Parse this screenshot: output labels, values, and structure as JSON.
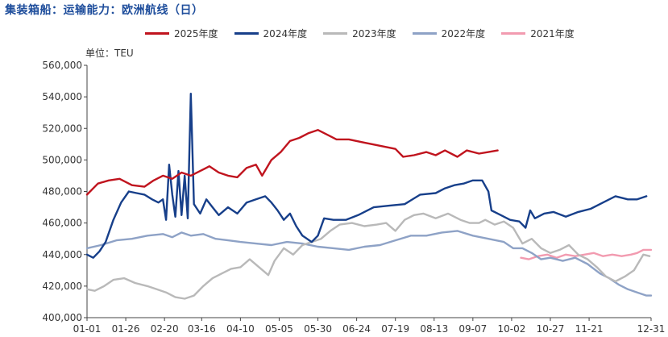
{
  "title": "集装箱船：运输能力：欧洲航线（日）",
  "unit_label": "单位：TEU",
  "chart_data": {
    "type": "line",
    "title": "集装箱船：运输能力：欧洲航线（日）",
    "ylabel": "单位：TEU",
    "ylim": [
      400000,
      560000
    ],
    "yticks": [
      "400,000",
      "420,000",
      "440,000",
      "460,000",
      "480,000",
      "500,000",
      "520,000",
      "540,000",
      "560,000"
    ],
    "ytick_values": [
      400000,
      420000,
      440000,
      460000,
      480000,
      500000,
      520000,
      540000,
      560000
    ],
    "xtick_labels": [
      "01-01",
      "01-26",
      "02-20",
      "03-16",
      "04-10",
      "05-05",
      "05-30",
      "06-24",
      "07-19",
      "08-13",
      "09-07",
      "10-02",
      "10-27",
      "11-21",
      "12-31"
    ],
    "xtick_days": [
      1,
      26,
      51,
      75,
      100,
      125,
      150,
      175,
      200,
      225,
      250,
      275,
      300,
      325,
      365
    ],
    "legend_position": "top",
    "grid": false,
    "series": [
      {
        "name": "2025年度",
        "color": "#c0141e",
        "points": [
          [
            1,
            478000
          ],
          [
            8,
            485000
          ],
          [
            15,
            487000
          ],
          [
            22,
            488000
          ],
          [
            30,
            484000
          ],
          [
            38,
            483000
          ],
          [
            44,
            487000
          ],
          [
            50,
            490000
          ],
          [
            56,
            488000
          ],
          [
            62,
            492000
          ],
          [
            68,
            490000
          ],
          [
            74,
            493000
          ],
          [
            80,
            496000
          ],
          [
            86,
            492000
          ],
          [
            92,
            490000
          ],
          [
            98,
            489000
          ],
          [
            104,
            495000
          ],
          [
            110,
            497000
          ],
          [
            114,
            490000
          ],
          [
            120,
            500000
          ],
          [
            126,
            505000
          ],
          [
            132,
            512000
          ],
          [
            138,
            514000
          ],
          [
            144,
            517000
          ],
          [
            150,
            519000
          ],
          [
            156,
            516000
          ],
          [
            162,
            513000
          ],
          [
            170,
            513000
          ],
          [
            180,
            511000
          ],
          [
            190,
            509000
          ],
          [
            200,
            507000
          ],
          [
            205,
            502000
          ],
          [
            212,
            503000
          ],
          [
            220,
            505000
          ],
          [
            226,
            503000
          ],
          [
            232,
            506000
          ],
          [
            240,
            502000
          ],
          [
            246,
            506000
          ],
          [
            254,
            504000
          ],
          [
            260,
            505000
          ],
          [
            266,
            506000
          ]
        ]
      },
      {
        "name": "2024年度",
        "color": "#173f8a",
        "points": [
          [
            1,
            440000
          ],
          [
            5,
            438000
          ],
          [
            9,
            442000
          ],
          [
            13,
            448000
          ],
          [
            18,
            462000
          ],
          [
            23,
            473000
          ],
          [
            28,
            480000
          ],
          [
            33,
            479000
          ],
          [
            38,
            478000
          ],
          [
            43,
            475000
          ],
          [
            47,
            473000
          ],
          [
            50,
            475000
          ],
          [
            52,
            462000
          ],
          [
            54,
            497000
          ],
          [
            56,
            478000
          ],
          [
            58,
            464000
          ],
          [
            60,
            493000
          ],
          [
            62,
            465000
          ],
          [
            64,
            490000
          ],
          [
            66,
            463000
          ],
          [
            68,
            542000
          ],
          [
            70,
            472000
          ],
          [
            74,
            466000
          ],
          [
            78,
            475000
          ],
          [
            82,
            470000
          ],
          [
            86,
            465000
          ],
          [
            92,
            470000
          ],
          [
            98,
            466000
          ],
          [
            104,
            473000
          ],
          [
            110,
            475000
          ],
          [
            116,
            477000
          ],
          [
            120,
            473000
          ],
          [
            124,
            468000
          ],
          [
            128,
            462000
          ],
          [
            132,
            466000
          ],
          [
            136,
            458000
          ],
          [
            140,
            452000
          ],
          [
            146,
            448000
          ],
          [
            150,
            452000
          ],
          [
            154,
            463000
          ],
          [
            160,
            462000
          ],
          [
            168,
            462000
          ],
          [
            176,
            465000
          ],
          [
            186,
            470000
          ],
          [
            196,
            471000
          ],
          [
            206,
            472000
          ],
          [
            216,
            478000
          ],
          [
            226,
            479000
          ],
          [
            232,
            482000
          ],
          [
            238,
            484000
          ],
          [
            244,
            485000
          ],
          [
            250,
            487000
          ],
          [
            256,
            487000
          ],
          [
            260,
            480000
          ],
          [
            262,
            468000
          ],
          [
            268,
            465000
          ],
          [
            274,
            462000
          ],
          [
            280,
            461000
          ],
          [
            284,
            457000
          ],
          [
            287,
            468000
          ],
          [
            290,
            463000
          ],
          [
            296,
            466000
          ],
          [
            302,
            467000
          ],
          [
            310,
            464000
          ],
          [
            318,
            467000
          ],
          [
            326,
            469000
          ],
          [
            334,
            473000
          ],
          [
            342,
            477000
          ],
          [
            350,
            475000
          ],
          [
            356,
            475000
          ],
          [
            362,
            477000
          ]
        ]
      },
      {
        "name": "2023年度",
        "color": "#b9b9b9",
        "points": [
          [
            1,
            418000
          ],
          [
            6,
            417000
          ],
          [
            12,
            420000
          ],
          [
            18,
            424000
          ],
          [
            25,
            425000
          ],
          [
            32,
            422000
          ],
          [
            40,
            420000
          ],
          [
            46,
            418000
          ],
          [
            52,
            416000
          ],
          [
            58,
            413000
          ],
          [
            64,
            412000
          ],
          [
            70,
            414000
          ],
          [
            76,
            420000
          ],
          [
            82,
            425000
          ],
          [
            88,
            428000
          ],
          [
            94,
            431000
          ],
          [
            100,
            432000
          ],
          [
            106,
            437000
          ],
          [
            112,
            432000
          ],
          [
            118,
            427000
          ],
          [
            122,
            436000
          ],
          [
            128,
            444000
          ],
          [
            134,
            440000
          ],
          [
            140,
            446000
          ],
          [
            146,
            448000
          ],
          [
            152,
            450000
          ],
          [
            158,
            455000
          ],
          [
            164,
            459000
          ],
          [
            172,
            460000
          ],
          [
            180,
            458000
          ],
          [
            188,
            459000
          ],
          [
            194,
            460000
          ],
          [
            200,
            455000
          ],
          [
            206,
            462000
          ],
          [
            212,
            465000
          ],
          [
            218,
            466000
          ],
          [
            226,
            463000
          ],
          [
            234,
            466000
          ],
          [
            242,
            462000
          ],
          [
            248,
            460000
          ],
          [
            254,
            460000
          ],
          [
            258,
            462000
          ],
          [
            264,
            459000
          ],
          [
            270,
            461000
          ],
          [
            276,
            457000
          ],
          [
            282,
            447000
          ],
          [
            288,
            450000
          ],
          [
            294,
            444000
          ],
          [
            300,
            441000
          ],
          [
            306,
            443000
          ],
          [
            312,
            446000
          ],
          [
            318,
            440000
          ],
          [
            324,
            437000
          ],
          [
            330,
            432000
          ],
          [
            336,
            426000
          ],
          [
            342,
            423000
          ],
          [
            348,
            426000
          ],
          [
            354,
            430000
          ],
          [
            360,
            440000
          ],
          [
            364,
            439000
          ]
        ]
      },
      {
        "name": "2022年度",
        "color": "#8ea2c6",
        "points": [
          [
            1,
            444000
          ],
          [
            10,
            446000
          ],
          [
            20,
            449000
          ],
          [
            30,
            450000
          ],
          [
            40,
            452000
          ],
          [
            50,
            453000
          ],
          [
            56,
            451000
          ],
          [
            62,
            454000
          ],
          [
            68,
            452000
          ],
          [
            76,
            453000
          ],
          [
            84,
            450000
          ],
          [
            92,
            449000
          ],
          [
            100,
            448000
          ],
          [
            110,
            447000
          ],
          [
            120,
            446000
          ],
          [
            130,
            448000
          ],
          [
            140,
            447000
          ],
          [
            150,
            445000
          ],
          [
            160,
            444000
          ],
          [
            170,
            443000
          ],
          [
            180,
            445000
          ],
          [
            190,
            446000
          ],
          [
            200,
            449000
          ],
          [
            210,
            452000
          ],
          [
            220,
            452000
          ],
          [
            230,
            454000
          ],
          [
            240,
            455000
          ],
          [
            250,
            452000
          ],
          [
            260,
            450000
          ],
          [
            270,
            448000
          ],
          [
            276,
            444000
          ],
          [
            282,
            444000
          ],
          [
            288,
            441000
          ],
          [
            294,
            437000
          ],
          [
            300,
            438000
          ],
          [
            308,
            436000
          ],
          [
            316,
            438000
          ],
          [
            324,
            434000
          ],
          [
            332,
            428000
          ],
          [
            338,
            425000
          ],
          [
            344,
            421000
          ],
          [
            350,
            418000
          ],
          [
            356,
            416000
          ],
          [
            362,
            414000
          ],
          [
            365,
            414000
          ]
        ]
      },
      {
        "name": "2021年度",
        "color": "#f29bb0",
        "points": [
          [
            281,
            438000
          ],
          [
            286,
            437000
          ],
          [
            292,
            439000
          ],
          [
            298,
            440000
          ],
          [
            304,
            438000
          ],
          [
            310,
            440000
          ],
          [
            316,
            439000
          ],
          [
            322,
            440000
          ],
          [
            328,
            441000
          ],
          [
            334,
            439000
          ],
          [
            340,
            440000
          ],
          [
            346,
            439000
          ],
          [
            352,
            440000
          ],
          [
            356,
            441000
          ],
          [
            360,
            443000
          ],
          [
            365,
            443000
          ]
        ]
      }
    ]
  }
}
